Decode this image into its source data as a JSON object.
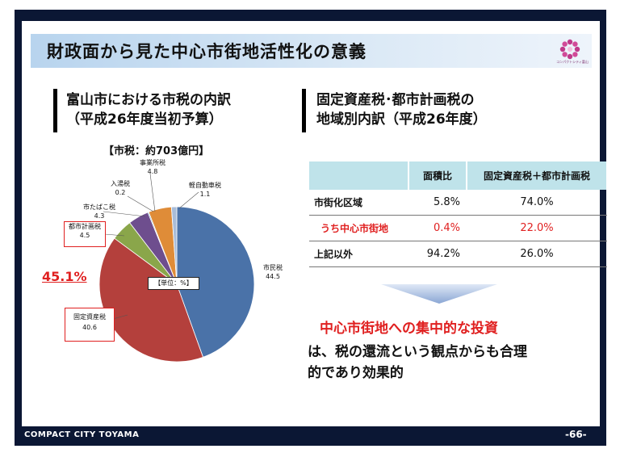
{
  "title": "財政面から見た中心市街地活性化の意義",
  "logo_text": "コンパクトシティ富山",
  "left": {
    "heading_line1": "富山市における市税の内訳",
    "heading_line2": "（平成26年度当初予算）",
    "subtitle": "【市税：約703億円】",
    "unit_label": "【単位：%】",
    "highlight_pct": "45.1%"
  },
  "right": {
    "heading_line1": "固定資産税･都市計画税の",
    "heading_line2": "地域別内訳（平成26年度）"
  },
  "chart_data": {
    "type": "pie",
    "title": "【市税：約703億円】",
    "slices": [
      {
        "label": "市民税",
        "value": "44.5",
        "num": 44.5,
        "color": "#4a72a8"
      },
      {
        "label": "固定資産税",
        "value": "40.6",
        "num": 40.6,
        "color": "#b4403c"
      },
      {
        "label": "都市計画税",
        "value": "4.5",
        "num": 4.5,
        "color": "#8aa64a"
      },
      {
        "label": "市たばこ税",
        "value": "4.3",
        "num": 4.3,
        "color": "#6e4e8e"
      },
      {
        "label": "入湯税",
        "value": "0.2",
        "num": 0.2,
        "color": "#3f9bb3"
      },
      {
        "label": "事業所税",
        "value": "4.8",
        "num": 4.8,
        "color": "#df8c38"
      },
      {
        "label": "軽自動車税",
        "value": "1.1",
        "num": 1.1,
        "color": "#a8bcd8"
      }
    ]
  },
  "table": {
    "headers": [
      "",
      "面積比",
      "固定資産税＋都市計画税"
    ],
    "rows": [
      [
        "市街化区域",
        "5.8%",
        "74.0%"
      ],
      [
        "うち中心市街地",
        "0.4%",
        "22.0%"
      ],
      [
        "上記以外",
        "94.2%",
        "26.0%"
      ]
    ]
  },
  "conclusion": {
    "line1": "中心市街地への集中的な投資",
    "line2": "は、税の還流という観点からも合理",
    "line3": "的であり効果的"
  },
  "footer": {
    "left": "COMPACT CITY TOYAMA",
    "right": "-66-"
  },
  "colors": {
    "frame": "#0b1734",
    "title_bar": "#c6dcf0",
    "table_header": "#bfe3ea",
    "accent_red": "#e02020"
  }
}
